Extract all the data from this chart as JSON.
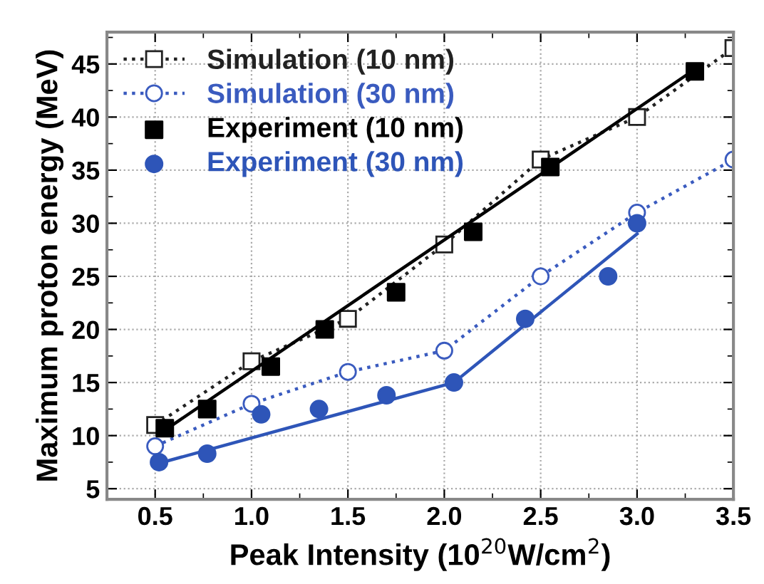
{
  "chart_data": {
    "type": "line",
    "xlabel": "Peak Intensity (10$^{20}$W/cm$^{2}$)",
    "ylabel": "Maximum proton energy (MeV)",
    "xlim": [
      0.25,
      3.5
    ],
    "ylim": [
      4,
      48
    ],
    "xticks": [
      {
        "value": 0.5,
        "label": "0.5"
      },
      {
        "value": 1.0,
        "label": "1.0"
      },
      {
        "value": 1.5,
        "label": "1.5"
      },
      {
        "value": 2.0,
        "label": "2.0"
      },
      {
        "value": 2.5,
        "label": "2.5"
      },
      {
        "value": 3.0,
        "label": "3.0"
      },
      {
        "value": 3.5,
        "label": "3.5"
      }
    ],
    "yticks": [
      5,
      10,
      15,
      20,
      25,
      30,
      35,
      40,
      45
    ],
    "grid": true,
    "legend": "top left",
    "series": [
      {
        "name": "Simulation (10 nm)",
        "color": "#222222",
        "marker": "square",
        "line_style": "dotted",
        "x": [
          0.5,
          1.0,
          1.5,
          2.0,
          2.5,
          3.0,
          3.5
        ],
        "values": [
          11,
          17,
          21,
          28,
          36,
          40,
          46.5
        ]
      },
      {
        "name": "Simulation (30 nm)",
        "color": "#3a5bbf",
        "marker": "circle",
        "line_style": "dotted",
        "x": [
          0.5,
          1.0,
          1.5,
          2.0,
          2.5,
          3.0,
          3.5
        ],
        "values": [
          9,
          13,
          16,
          18,
          25,
          31,
          36
        ]
      },
      {
        "name": "Experiment (10 nm)",
        "type": "scatter",
        "color": "#000000",
        "marker": "square",
        "x": [
          0.55,
          0.77,
          1.1,
          1.38,
          1.75,
          2.15,
          2.55,
          3.3
        ],
        "values": [
          10.7,
          12.5,
          16.5,
          20,
          23.5,
          29.2,
          35.3,
          44.3
        ]
      },
      {
        "name": "Experiment (30 nm)",
        "type": "scatter",
        "color": "#2e55b8",
        "marker": "circle",
        "x": [
          0.52,
          0.77,
          1.05,
          1.35,
          1.7,
          2.05,
          2.42,
          2.85,
          3.0
        ],
        "values": [
          7.5,
          8.3,
          12,
          12.5,
          13.8,
          15,
          21,
          25,
          30
        ]
      },
      {
        "color": "#000000",
        "marker": "none",
        "line_style": "solid",
        "x": [
          0.55,
          3.3
        ],
        "values": [
          10.5,
          44.5
        ]
      },
      {
        "color": "#2e55b8",
        "marker": "none",
        "line_style": "solid",
        "x": [
          0.5,
          2.05,
          3.0
        ],
        "values": [
          7.3,
          15,
          29
        ]
      }
    ]
  }
}
